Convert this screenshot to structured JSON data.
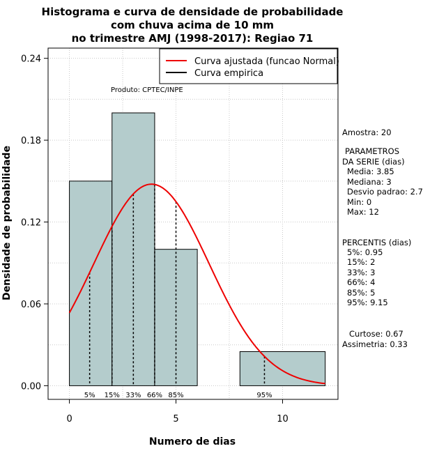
{
  "chart_data": {
    "type": "histogram",
    "title_lines": [
      "Histograma e curva de densidade de probabilidade",
      "com chuva acima de 10 mm",
      "no trimestre AMJ (1998-2017): Regiao 71"
    ],
    "xlabel": "Numero de dias",
    "ylabel": "Densidade de probabilidade",
    "xlim": [
      -1,
      12.6
    ],
    "ylim": [
      -0.01,
      0.2475
    ],
    "x_ticks": [
      0,
      5,
      10
    ],
    "y_ticks": [
      0.0,
      0.06,
      0.12,
      0.18,
      0.24
    ],
    "y_tick_labels": [
      "0.00",
      "0.06",
      "0.12",
      "0.18",
      "0.24"
    ],
    "grid": true,
    "bar_color": "#b4cccc",
    "bins": [
      {
        "x0": 0,
        "x1": 2,
        "density": 0.15
      },
      {
        "x0": 2,
        "x1": 4,
        "density": 0.2
      },
      {
        "x0": 4,
        "x1": 6,
        "density": 0.1
      },
      {
        "x0": 6,
        "x1": 8,
        "density": 0.0
      },
      {
        "x0": 8,
        "x1": 12,
        "density": 0.025
      }
    ],
    "normal_curve": {
      "mean": 3.85,
      "sd": 2.7,
      "x_from": 0,
      "x_to": 12,
      "color": "#ee0000"
    },
    "percentile_lines": [
      {
        "label": "5%",
        "x": 0.95
      },
      {
        "label": "15%",
        "x": 2
      },
      {
        "label": "33%",
        "x": 3
      },
      {
        "label": "66%",
        "x": 4
      },
      {
        "label": "85%",
        "x": 5
      },
      {
        "label": "95%",
        "x": 9.15
      }
    ],
    "legend": {
      "placement": "top-right",
      "entries": [
        {
          "label": "Curva ajustada (funcao Normal)",
          "color": "#ee0000"
        },
        {
          "label": "Curva empirica",
          "color": "#000000"
        }
      ]
    },
    "product_label": "Produto: CPTEC/INPE",
    "stats": {
      "sample": "Amostra: 20",
      "params_title_1": "PARAMETROS",
      "params_title_2": "DA SERIE (dias)",
      "params": [
        "Media: 3.85",
        "Mediana: 3",
        "Desvio padrao: 2.7",
        "Min: 0",
        "Max: 12"
      ],
      "percentis_title": "PERCENTIS (dias)",
      "percentis": [
        "5%: 0.95",
        "15%: 2",
        "33%: 3",
        "66%: 4",
        "85%: 5",
        "95%: 9.15"
      ],
      "curtose": "Curtose: 0.67",
      "assimetria": "Assimetria: 0.33"
    }
  }
}
